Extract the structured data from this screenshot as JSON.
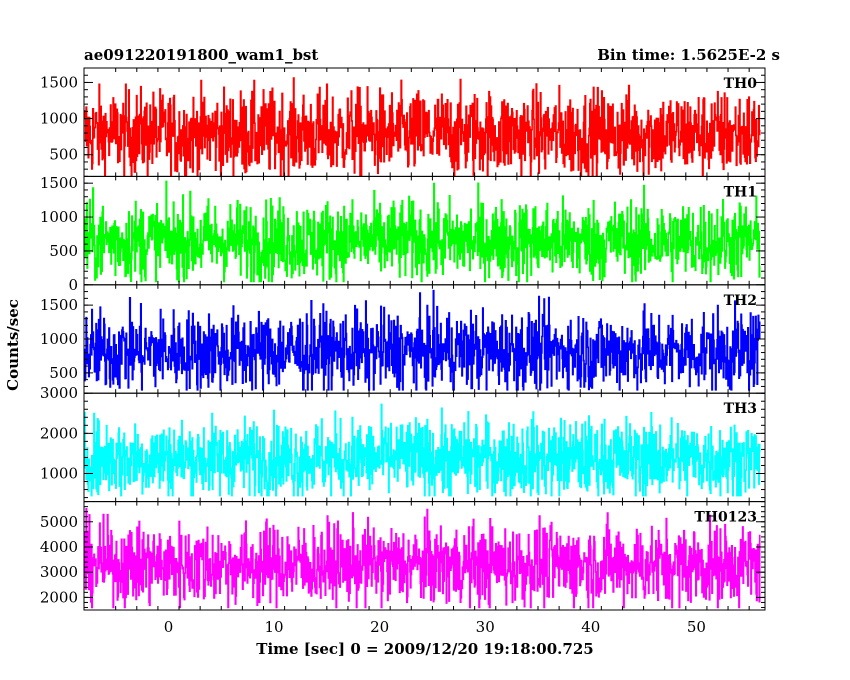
{
  "header": {
    "title_left": "ae091220191800_wam1_bst",
    "title_right": "Bin time: 1.5625E-2 s"
  },
  "chart_data": {
    "type": "line",
    "xlabel": "Time [sec] 0 = 2009/12/20 19:18:00.725",
    "ylabel": "Counts/sec",
    "xlim": [
      -8,
      56.5
    ],
    "x_range": [
      -8,
      56
    ],
    "bin_time": 0.015625,
    "x_ticks": [
      0,
      10,
      20,
      30,
      40,
      50
    ],
    "panels": [
      {
        "name": "TH0",
        "color": "#ff0000",
        "ylim": [
          200,
          1700
        ],
        "y_ticks": [
          500,
          1000,
          1500
        ],
        "mean": 790,
        "typical_min": 150,
        "typical_max": 1700
      },
      {
        "name": "TH1",
        "color": "#00ff00",
        "ylim": [
          0,
          1600
        ],
        "y_ticks": [
          0,
          500,
          1000,
          1500
        ],
        "mean": 650,
        "typical_min": 50,
        "typical_max": 1600
      },
      {
        "name": "TH2",
        "color": "#0000ff",
        "ylim": [
          200,
          1800
        ],
        "y_ticks": [
          500,
          1000,
          1500
        ],
        "mean": 820,
        "typical_min": 250,
        "typical_max": 1800
      },
      {
        "name": "TH3",
        "color": "#00ffff",
        "ylim": [
          300,
          3000
        ],
        "y_ticks": [
          1000,
          2000,
          3000
        ],
        "mean": 1380,
        "typical_min": 450,
        "typical_max": 3000
      },
      {
        "name": "TH0123",
        "color": "#ff00ff",
        "ylim": [
          1500,
          5800
        ],
        "y_ticks": [
          2000,
          3000,
          4000,
          5000
        ],
        "mean": 3300,
        "typical_min": 1600,
        "typical_max": 5800
      }
    ]
  }
}
